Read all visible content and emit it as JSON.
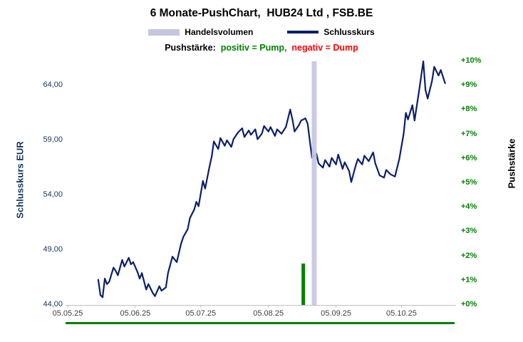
{
  "title": "6 Monate-PushChart,  HUB24 Ltd , FSB.BE",
  "legend": {
    "volume_label": "Handelsvolumen",
    "close_label": "Schlusskurs"
  },
  "subtitle": {
    "prefix": "Pushstärke:  ",
    "positive": "positiv = Pump,",
    "separator": "  ",
    "negative": "negativ = Dump"
  },
  "colors": {
    "close_line": "#0a1f6b",
    "volume_bar": "#c6c6e0",
    "push_positive": "#008000",
    "push_negative": "#ff0000",
    "left_axis_text": "#17365d",
    "right_axis_text": "#008000",
    "x_axis_text": "#404040",
    "axis_line": "#bfbfbf"
  },
  "chart_data": {
    "type": "line",
    "title": "6 Monate-PushChart, HUB24 Ltd, FSB.BE",
    "left_axis": {
      "label": "Schlusskurs EUR",
      "tick_labels": [
        "44,00",
        "49,00",
        "54,00",
        "59,00",
        "64,00"
      ],
      "tick_values": [
        44,
        49,
        54,
        59,
        64
      ],
      "range": [
        44,
        66.2
      ]
    },
    "right_axis": {
      "label": "Pushstärke",
      "tick_labels": [
        "+0%",
        "+1%",
        "+2%",
        "+3%",
        "+4%",
        "+5%",
        "+6%",
        "+7%",
        "+8%",
        "+9%",
        "+10%"
      ],
      "tick_values": [
        0,
        1,
        2,
        3,
        4,
        5,
        6,
        7,
        8,
        9,
        10
      ],
      "range": [
        0,
        10
      ]
    },
    "x_axis": {
      "tick_labels": [
        "05.05.25",
        "05.06.25",
        "05.07.25",
        "05.08.25",
        "05.09.25",
        "05.10.25"
      ],
      "tick_days": [
        0,
        31,
        61,
        92,
        123,
        153
      ],
      "range_days": [
        0,
        178
      ]
    },
    "grid": false,
    "legend_position": "top",
    "series": [
      {
        "name": "Schlusskurs",
        "type": "line",
        "unit": "EUR",
        "points": [
          [
            14,
            46.3
          ],
          [
            15,
            44.9
          ],
          [
            16,
            44.7
          ],
          [
            17,
            46.4
          ],
          [
            18,
            45.9
          ],
          [
            19,
            46.1
          ],
          [
            21,
            47.4
          ],
          [
            22,
            47.1
          ],
          [
            23,
            46.7
          ],
          [
            25,
            48.1
          ],
          [
            26,
            47.5
          ],
          [
            28,
            48.3
          ],
          [
            29,
            47.7
          ],
          [
            30,
            47.9
          ],
          [
            32,
            47.0
          ],
          [
            33,
            46.4
          ],
          [
            34,
            46.9
          ],
          [
            36,
            45.4
          ],
          [
            37,
            45.9
          ],
          [
            39,
            45.1
          ],
          [
            40,
            44.8
          ],
          [
            42,
            45.7
          ],
          [
            43,
            45.3
          ],
          [
            45,
            45.6
          ],
          [
            46,
            46.9
          ],
          [
            48,
            48.4
          ],
          [
            50,
            47.9
          ],
          [
            52,
            49.6
          ],
          [
            53,
            50.2
          ],
          [
            55,
            50.9
          ],
          [
            56,
            51.9
          ],
          [
            58,
            52.7
          ],
          [
            59,
            53.4
          ],
          [
            60,
            53.0
          ],
          [
            62,
            55.3
          ],
          [
            63,
            54.6
          ],
          [
            65,
            56.6
          ],
          [
            66,
            57.5
          ],
          [
            67,
            58.9
          ],
          [
            69,
            58.2
          ],
          [
            70,
            59.2
          ],
          [
            72,
            58.5
          ],
          [
            73,
            59.0
          ],
          [
            75,
            58.4
          ],
          [
            76,
            59.1
          ],
          [
            78,
            59.7
          ],
          [
            80,
            60.1
          ],
          [
            81,
            59.3
          ],
          [
            83,
            59.9
          ],
          [
            84,
            59.5
          ],
          [
            86,
            60.0
          ],
          [
            87,
            59.1
          ],
          [
            89,
            59.6
          ],
          [
            90,
            60.3
          ],
          [
            92,
            59.8
          ],
          [
            93,
            60.2
          ],
          [
            95,
            59.4
          ],
          [
            96,
            60.0
          ],
          [
            98,
            59.6
          ],
          [
            100,
            60.2
          ],
          [
            102,
            61.8
          ],
          [
            103,
            60.9
          ],
          [
            104,
            59.8
          ],
          [
            106,
            60.4
          ],
          [
            107,
            60.8
          ],
          [
            109,
            61.0
          ],
          [
            110,
            60.5
          ],
          [
            111,
            58.9
          ],
          [
            112,
            57.4
          ],
          [
            114,
            57.8
          ],
          [
            115,
            56.9
          ],
          [
            117,
            56.5
          ],
          [
            118,
            57.2
          ],
          [
            120,
            56.6
          ],
          [
            121,
            57.4
          ],
          [
            123,
            56.8
          ],
          [
            124,
            57.7
          ],
          [
            126,
            56.4
          ],
          [
            127,
            57.0
          ],
          [
            129,
            56.2
          ],
          [
            130,
            55.2
          ],
          [
            132,
            56.7
          ],
          [
            133,
            57.3
          ],
          [
            135,
            56.8
          ],
          [
            136,
            57.6
          ],
          [
            138,
            57.1
          ],
          [
            140,
            57.9
          ],
          [
            141,
            56.9
          ],
          [
            143,
            55.8
          ],
          [
            145,
            55.6
          ],
          [
            146,
            56.3
          ],
          [
            148,
            55.9
          ],
          [
            150,
            55.7
          ],
          [
            152,
            57.3
          ],
          [
            154,
            59.6
          ],
          [
            155,
            61.5
          ],
          [
            156,
            60.9
          ],
          [
            158,
            62.2
          ],
          [
            159,
            60.8
          ],
          [
            161,
            63.4
          ],
          [
            163,
            66.2
          ],
          [
            164,
            63.6
          ],
          [
            165,
            62.8
          ],
          [
            167,
            64.4
          ],
          [
            168,
            65.7
          ],
          [
            170,
            64.9
          ],
          [
            171,
            65.4
          ],
          [
            173,
            64.2
          ]
        ]
      },
      {
        "name": "Handelsvolumen",
        "type": "bar",
        "bars": [
          {
            "day": 113,
            "full_height": true
          }
        ]
      },
      {
        "name": "Pushstärke",
        "type": "bar",
        "bars": [
          {
            "day": 108,
            "pct": 1.7
          }
        ],
        "baseline_pct": 0
      }
    ]
  }
}
